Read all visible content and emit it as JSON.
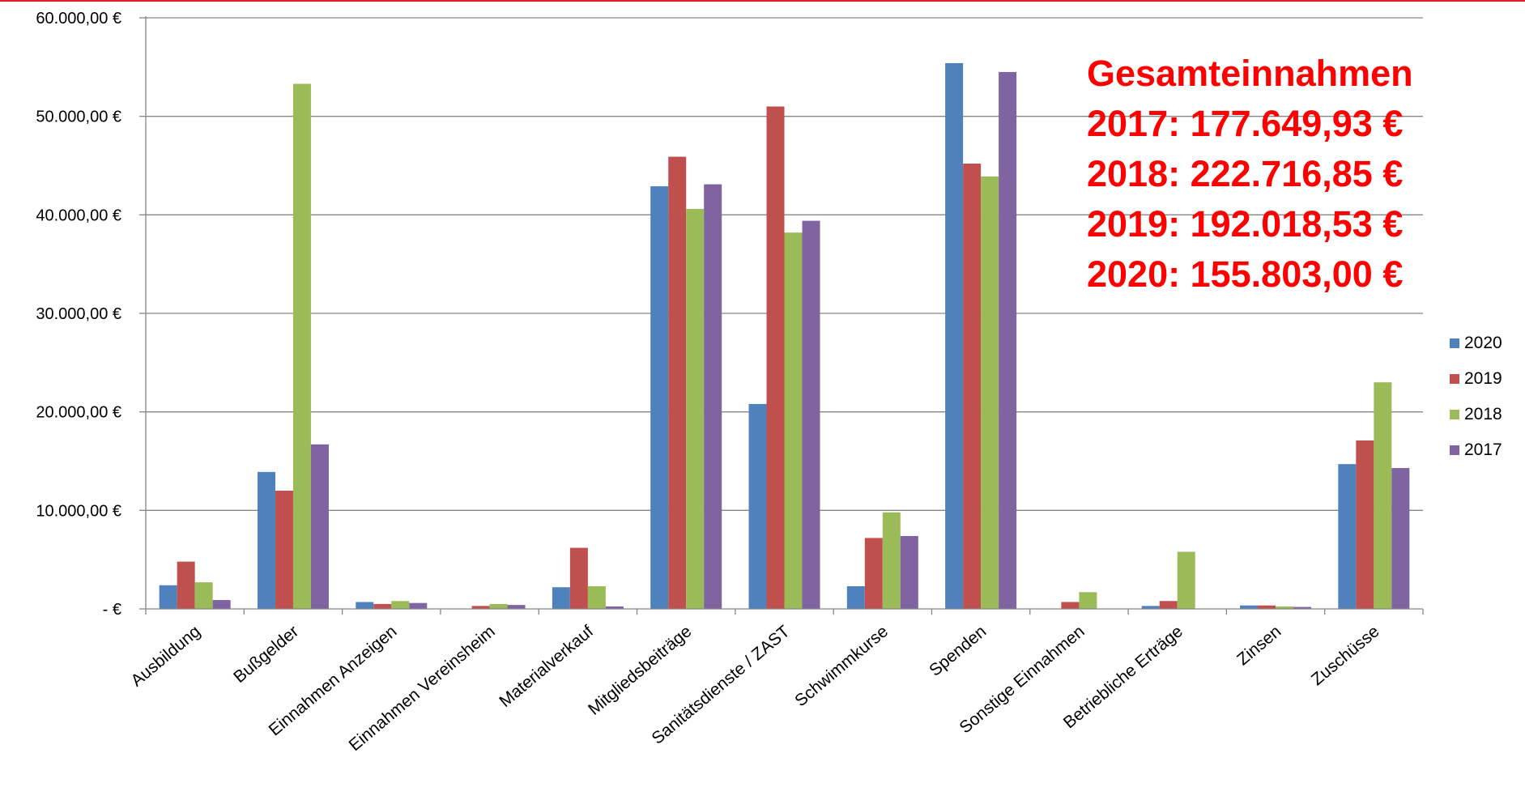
{
  "chart_data": {
    "type": "bar",
    "categories": [
      "Ausbildung",
      "Bußgelder",
      "Einnahmen Anzeigen",
      "Einnahmen Vereinsheim",
      "Materialverkauf",
      "Mitgliedsbeiträge",
      "Sanitätsdienste / ZAST",
      "Schwimmkurse",
      "Spenden",
      "Sonstige Einnahmen",
      "Betriebliche Erträge",
      "Zinsen",
      "Zuschüsse"
    ],
    "series": [
      {
        "name": "2020",
        "color": "#4f81bd",
        "values": [
          2400,
          13900,
          700,
          0,
          2200,
          42900,
          20800,
          2300,
          55400,
          0,
          300,
          350,
          14700
        ]
      },
      {
        "name": "2019",
        "color": "#c0504d",
        "values": [
          4800,
          12000,
          500,
          300,
          6200,
          45900,
          51000,
          7200,
          45200,
          700,
          800,
          350,
          17100
        ]
      },
      {
        "name": "2018",
        "color": "#9bbb59",
        "values": [
          2700,
          53300,
          800,
          500,
          2300,
          40600,
          38200,
          9800,
          43900,
          1700,
          5800,
          250,
          23000
        ]
      },
      {
        "name": "2017",
        "color": "#8064a2",
        "values": [
          900,
          16700,
          600,
          400,
          250,
          43100,
          39400,
          7400,
          54500,
          0,
          0,
          200,
          14300
        ]
      }
    ],
    "ylim": [
      0,
      60000
    ],
    "yticks": [
      {
        "value": 0,
        "label": "-   €"
      },
      {
        "value": 10000,
        "label": "10.000,00 €"
      },
      {
        "value": 20000,
        "label": "20.000,00 €"
      },
      {
        "value": 30000,
        "label": "30.000,00 €"
      },
      {
        "value": 40000,
        "label": "40.000,00 €"
      },
      {
        "value": 50000,
        "label": "50.000,00 €"
      },
      {
        "value": 60000,
        "label": "60.000,00 €"
      }
    ],
    "grid": true,
    "legend_position": "right",
    "legend_order": [
      "2020",
      "2019",
      "2018",
      "2017"
    ]
  },
  "annotation": {
    "color": "#ff0000",
    "lines": [
      "Gesamteinnahmen",
      "2017: 177.649,93 €",
      "2018: 222.716,85 €",
      "2019: 192.018,53 €",
      "2020: 155.803,00 €"
    ]
  }
}
